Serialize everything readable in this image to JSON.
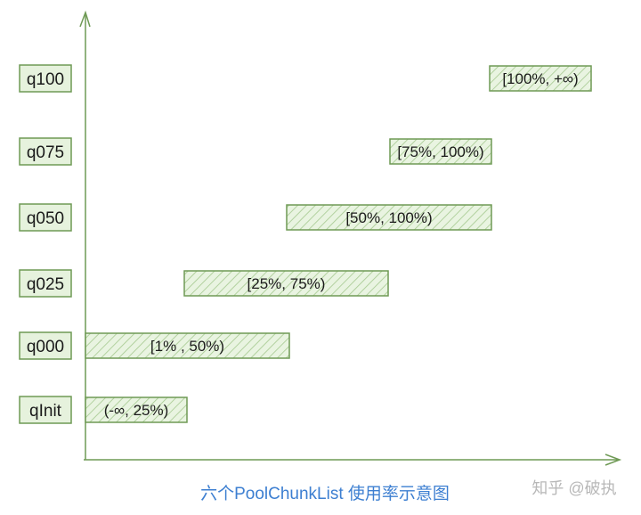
{
  "colors": {
    "axis": "#6f9a55",
    "box_stroke": "#6f9a55",
    "box_fill": "#e6f2dd",
    "hatch": "#9dc287",
    "caption": "#3d7fd1",
    "watermark": "#b8b8b8"
  },
  "diagram": {
    "caption": "六个PoolChunkList 使用率示意图",
    "watermark": "知乎 @破执",
    "lists": [
      {
        "name": "q100",
        "range": "[100%, +∞)",
        "from": 100,
        "to": "+∞"
      },
      {
        "name": "q075",
        "range": "[75%, 100%)",
        "from": 75,
        "to": 100
      },
      {
        "name": "q050",
        "range": "[50%, 100%)",
        "from": 50,
        "to": 100
      },
      {
        "name": "q025",
        "range": "[25%, 75%)",
        "from": 25,
        "to": 75
      },
      {
        "name": "q000",
        "range": "[1% , 50%)",
        "from": 1,
        "to": 50
      },
      {
        "name": "qInit",
        "range": "(-∞, 25%)",
        "from": "-∞",
        "to": 25
      }
    ]
  }
}
